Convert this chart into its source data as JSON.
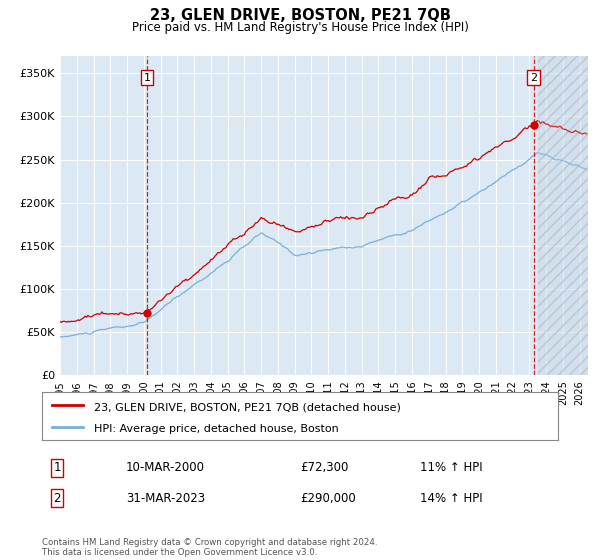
{
  "title": "23, GLEN DRIVE, BOSTON, PE21 7QB",
  "subtitle": "Price paid vs. HM Land Registry's House Price Index (HPI)",
  "hpi_color": "#7ab0d8",
  "price_color": "#cc0000",
  "bg_color": "#dce9f5",
  "grid_color": "#ffffff",
  "ylim": [
    0,
    370000
  ],
  "yticks": [
    0,
    50000,
    100000,
    150000,
    200000,
    250000,
    300000,
    350000
  ],
  "ytick_labels": [
    "£0",
    "£50K",
    "£100K",
    "£150K",
    "£200K",
    "£250K",
    "£300K",
    "£350K"
  ],
  "xstart": 1995,
  "xend": 2026.5,
  "xticks": [
    1995,
    1996,
    1997,
    1998,
    1999,
    2000,
    2001,
    2002,
    2003,
    2004,
    2005,
    2006,
    2007,
    2008,
    2009,
    2010,
    2011,
    2012,
    2013,
    2014,
    2015,
    2016,
    2017,
    2018,
    2019,
    2020,
    2021,
    2022,
    2023,
    2024,
    2025,
    2026
  ],
  "sale1_x": 2000.2,
  "sale1_y": 72300,
  "sale2_x": 2023.25,
  "sale2_y": 290000,
  "sale1_label": "1",
  "sale2_label": "2",
  "legend_line1": "23, GLEN DRIVE, BOSTON, PE21 7QB (detached house)",
  "legend_line2": "HPI: Average price, detached house, Boston",
  "table_row1_num": "1",
  "table_row1_date": "10-MAR-2000",
  "table_row1_price": "£72,300",
  "table_row1_hpi": "11% ↑ HPI",
  "table_row2_num": "2",
  "table_row2_date": "31-MAR-2023",
  "table_row2_price": "£290,000",
  "table_row2_hpi": "14% ↑ HPI",
  "footnote": "Contains HM Land Registry data © Crown copyright and database right 2024.\nThis data is licensed under the Open Government Licence v3.0.",
  "future_cutoff": 2023.5
}
